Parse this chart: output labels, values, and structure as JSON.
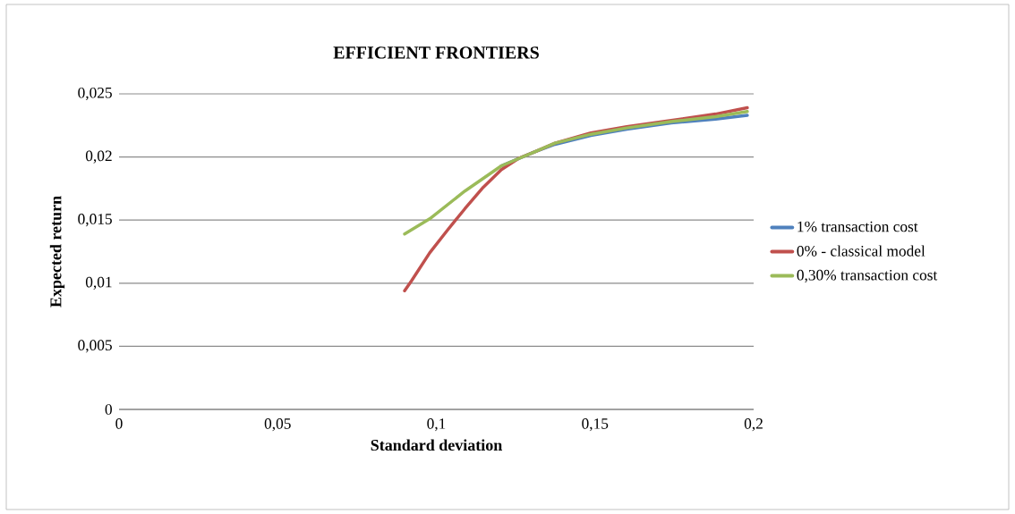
{
  "chart_data": {
    "type": "line",
    "title": "EFFICIENT FRONTIERS",
    "xlabel": "Standard deviation",
    "ylabel": "Expected return",
    "xlim": [
      0,
      0.2
    ],
    "ylim": [
      0,
      0.025
    ],
    "xticks": [
      0,
      {
        "value": 0.05,
        "label": "0,05"
      },
      {
        "value": 0.1,
        "label": "0,1"
      },
      {
        "value": 0.15,
        "label": "0,15"
      },
      {
        "value": 0.2,
        "label": "0,2"
      }
    ],
    "yticks": [
      0,
      {
        "value": 0.005,
        "label": "0,005"
      },
      {
        "value": 0.01,
        "label": "0,01"
      },
      {
        "value": 0.015,
        "label": "0,015"
      },
      {
        "value": 0.02,
        "label": "0,02"
      },
      {
        "value": 0.025,
        "label": "0,025"
      }
    ],
    "grid": "y",
    "legend": "right",
    "marker": "none",
    "line_style": "solid",
    "series": [
      {
        "name": "1% transaction cost",
        "color": "#4f81bd",
        "x": [
          0.1205,
          0.131,
          0.1374,
          0.1487,
          0.16,
          0.174,
          0.188,
          0.198
        ],
        "values": [
          0.0193,
          0.0204,
          0.021,
          0.0217,
          0.0222,
          0.0227,
          0.023,
          0.0233
        ]
      },
      {
        "name": "0% - classical model",
        "color": "#c0504d",
        "x": [
          0.09,
          0.0922,
          0.0979,
          0.1035,
          0.109,
          0.1148,
          0.1205,
          0.126,
          0.131,
          0.1374,
          0.1487,
          0.16,
          0.174,
          0.188,
          0.198
        ],
        "values": [
          0.0094,
          0.0102,
          0.0124,
          0.0142,
          0.0159,
          0.0176,
          0.019,
          0.0199,
          0.0204,
          0.0211,
          0.0219,
          0.0224,
          0.0229,
          0.0234,
          0.0239
        ]
      },
      {
        "name": "0,30% transaction cost",
        "color": "#9bbb59",
        "x": [
          0.09,
          0.0979,
          0.109,
          0.1205,
          0.131,
          0.1374,
          0.1487,
          0.16,
          0.174,
          0.188,
          0.198
        ],
        "values": [
          0.0139,
          0.0151,
          0.0173,
          0.0193,
          0.0204,
          0.0211,
          0.0218,
          0.0223,
          0.0228,
          0.0232,
          0.0236
        ]
      }
    ]
  }
}
